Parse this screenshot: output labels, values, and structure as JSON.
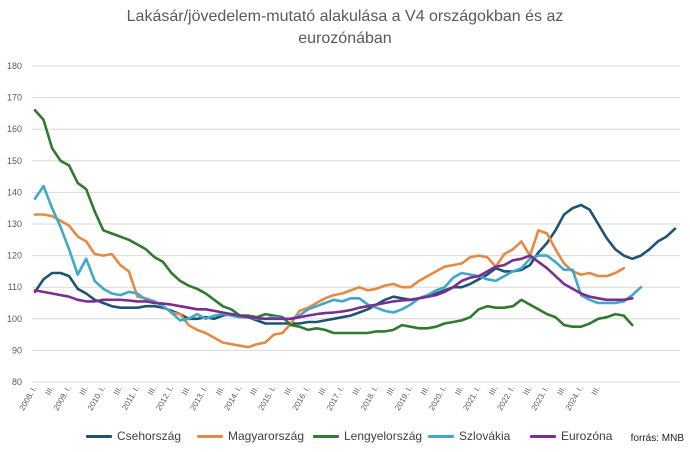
{
  "chart_data": {
    "type": "line",
    "title": [
      "Lakásár/jövedelem-mutató alakulása a V4 országokban és az",
      "eurozónában"
    ],
    "source": "forrás: MNB",
    "ylim": [
      80,
      180
    ],
    "yticks": [
      "80",
      "90",
      "100",
      "110",
      "120",
      "130",
      "140",
      "150",
      "160",
      "170",
      "180"
    ],
    "grid": true,
    "legend_position": "bottom",
    "x_tick_labels": [
      "2008. I.",
      "III.",
      "2009. I.",
      "III.",
      "2010. I.",
      "III.",
      "2011. I.",
      "III.",
      "2012. I.",
      "III.",
      "2013. I.",
      "III.",
      "2014. I.",
      "III.",
      "2015. I.",
      "III.",
      "2016. I.",
      "III.",
      "2017. I.",
      "III.",
      "2018. I.",
      "III.",
      "2019. I.",
      "III.",
      "2020. I.",
      "III.",
      "2021. I.",
      "III.",
      "2022. I.",
      "III.",
      "2023. I.",
      "III.",
      "2024. I.",
      "III."
    ],
    "series": [
      {
        "name": "Csehország",
        "color": "#1f5373",
        "values": [
          108.5,
          112.5,
          114.5,
          114.5,
          113.5,
          109.5,
          108,
          106,
          105,
          104,
          103.5,
          103.5,
          103.5,
          104,
          104,
          103.5,
          102.5,
          101.5,
          100,
          100,
          100.5,
          100,
          101,
          101.5,
          101,
          100.5,
          99.5,
          98.5,
          98.5,
          98.5,
          98.5,
          98.5,
          99,
          99,
          99.5,
          100,
          100.5,
          101,
          102,
          103,
          104.5,
          106,
          107,
          106.5,
          106,
          106.5,
          107,
          108,
          109,
          110,
          110,
          111,
          112.5,
          114,
          116,
          115,
          115,
          115.5,
          117,
          121,
          124,
          128,
          133,
          135,
          136,
          134.5,
          130,
          125.5,
          122,
          120,
          119,
          120,
          122,
          124.5,
          126,
          128.5
        ]
      },
      {
        "name": "Magyarország",
        "color": "#e58945",
        "values": [
          133,
          133,
          132.5,
          131,
          129.5,
          126,
          124.5,
          120.5,
          120,
          120.5,
          117,
          115,
          107,
          106.5,
          105.5,
          104,
          102,
          101.5,
          98,
          96.5,
          95.5,
          94,
          92.5,
          92,
          91.5,
          91,
          92,
          92.5,
          95,
          95.5,
          98.5,
          102.5,
          103.5,
          105,
          106.5,
          107.5,
          108,
          109,
          110,
          109,
          109.5,
          110.5,
          111,
          110,
          110,
          112,
          113.5,
          115,
          116.5,
          117,
          117.5,
          119.5,
          120,
          119.5,
          116.5,
          120.5,
          122,
          124.5,
          120,
          128,
          127,
          122,
          117.5,
          115,
          114,
          114.5,
          113.5,
          113.5,
          114.5,
          116
        ]
      },
      {
        "name": "Lengyelország",
        "color": "#2f7a2f",
        "values": [
          166,
          163,
          154,
          150,
          148.5,
          143,
          141,
          134,
          128,
          127,
          126,
          125,
          123.5,
          122,
          119.5,
          118,
          114.5,
          112,
          110.5,
          109.5,
          108,
          106,
          104,
          103,
          101,
          101,
          100.5,
          101.5,
          101,
          100.5,
          98,
          97.5,
          96.5,
          97,
          96.5,
          95.5,
          95.5,
          95.5,
          95.5,
          95.5,
          96,
          96,
          96.5,
          98,
          97.5,
          97,
          97,
          97.5,
          98.5,
          99,
          99.5,
          100.5,
          103,
          104,
          103.5,
          103.5,
          104,
          106,
          104.5,
          103,
          101.5,
          100.5,
          98,
          97.5,
          97.5,
          98.5,
          100,
          100.5,
          101.5,
          101,
          98
        ]
      },
      {
        "name": "Szlovákia",
        "color": "#3fa9c8",
        "values": [
          138,
          142,
          135,
          129,
          122,
          114,
          119,
          112,
          109.5,
          108,
          107.5,
          108.5,
          108,
          106,
          105.5,
          104,
          102,
          99.5,
          100,
          101.5,
          100,
          101,
          101.5,
          101,
          100.5,
          100.5,
          100,
          100,
          100.5,
          100,
          100,
          101,
          103,
          104,
          105,
          106,
          105.5,
          106.5,
          106.5,
          104.5,
          103.5,
          102.5,
          102,
          103,
          104.5,
          106.5,
          107.5,
          109,
          110,
          113,
          114.5,
          114,
          113.5,
          112.5,
          112,
          113.5,
          115,
          116,
          119,
          120,
          120,
          118,
          115.5,
          115.5,
          107.5,
          106,
          105,
          105,
          105,
          105.5,
          107.5,
          110
        ]
      },
      {
        "name": "Eurozóna",
        "color": "#7b2e8f",
        "values": [
          109,
          108.5,
          108,
          107.5,
          107,
          106,
          105.5,
          105.5,
          106,
          106,
          106,
          105.8,
          105.5,
          105.5,
          105,
          104.8,
          104.5,
          104,
          103.5,
          103,
          103,
          102.5,
          102,
          101.5,
          101,
          100.5,
          100.3,
          100,
          100,
          100,
          100,
          100.5,
          101,
          101.5,
          101.8,
          102,
          102.3,
          102.8,
          103.5,
          104,
          104.5,
          105,
          105.5,
          105.8,
          106,
          106.5,
          107,
          107.5,
          108.5,
          110,
          112,
          113,
          113.5,
          115,
          116.5,
          117,
          118.5,
          119,
          120,
          118,
          116,
          113.5,
          111,
          109.5,
          108,
          107,
          106.5,
          106,
          106,
          106,
          106.5
        ]
      }
    ]
  }
}
